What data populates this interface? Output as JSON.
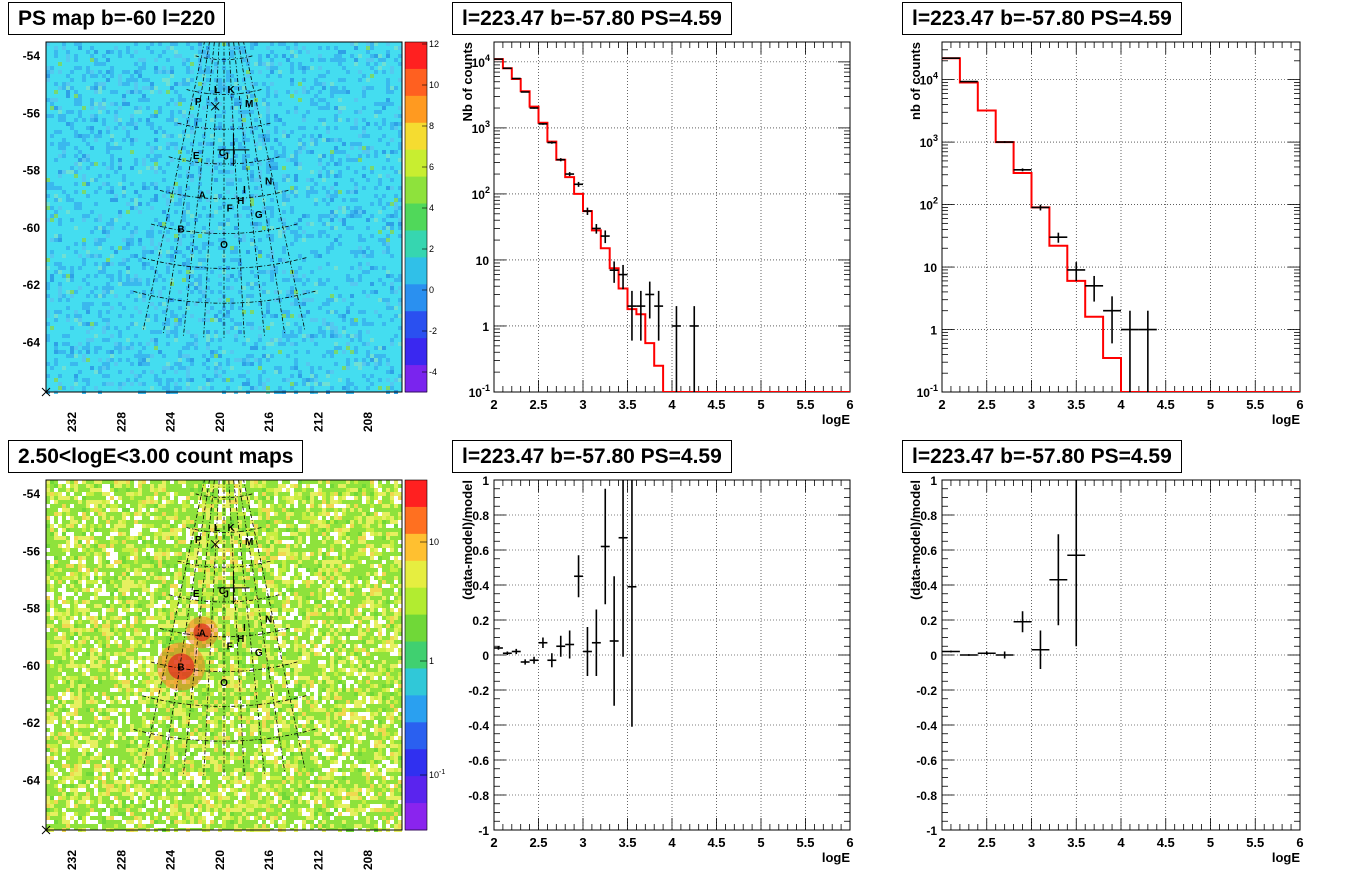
{
  "panels": {
    "psmap_title": "PS map b=-60 l=220",
    "countmap_title": "2.50<logE<3.00 count maps",
    "spec1_title": "l=223.47 b=-57.80 PS=4.59",
    "spec2_title": "l=223.47 b=-57.80 PS=4.59",
    "res1_title": "l=223.47 b=-57.80 PS=4.59",
    "res2_title": "l=223.47 b=-57.80 PS=4.59"
  },
  "colors": {
    "model_line": "#ff0000",
    "data_points": "#000000",
    "psmap_background": "#44ddf0",
    "countmap_background": "#8ee23c"
  },
  "maps": {
    "lat_ticks": [
      "-54",
      "-56",
      "-58",
      "-60",
      "-62",
      "-64"
    ],
    "lon_ticks": [
      "232",
      "228",
      "224",
      "220",
      "216",
      "212",
      "208"
    ],
    "source_labels": [
      {
        "name": "K",
        "l": 223.9,
        "b": -53.7
      },
      {
        "name": "L",
        "l": 216.1,
        "b": -53.7
      },
      {
        "name": "M",
        "l": 232.5,
        "b": -54.6
      },
      {
        "name": "P",
        "l": 207.1,
        "b": -54.5
      },
      {
        "name": "C",
        "l": 219.4,
        "b": -57.3
      },
      {
        "name": "J",
        "l": 220.8,
        "b": -57.5
      },
      {
        "name": "E",
        "l": 209.7,
        "b": -57.6
      },
      {
        "name": "N",
        "l": 234.6,
        "b": -59.2
      },
      {
        "name": "I",
        "l": 226.5,
        "b": -59.5
      },
      {
        "name": "A",
        "l": 213.2,
        "b": -59.8
      },
      {
        "name": "H",
        "l": 225.1,
        "b": -60.1
      },
      {
        "name": "F",
        "l": 221.7,
        "b": -60.5
      },
      {
        "name": "G",
        "l": 230.0,
        "b": -61.0
      },
      {
        "name": "B",
        "l": 208.3,
        "b": -61.9
      },
      {
        "name": "O",
        "l": 220.0,
        "b": -62.6
      }
    ],
    "psmap_colorbar_ticks": [
      "12",
      "10",
      "8",
      "6",
      "4",
      "2",
      "0",
      "-2",
      "-4"
    ],
    "countmap_colorbar_ticks": [
      "10",
      "1",
      "10-1"
    ]
  },
  "chart_data": [
    {
      "type": "line",
      "title": "l=223.47 b=-57.80 PS=4.59",
      "xlabel": "logE",
      "ylabel": "Nb of counts",
      "xlim": [
        2,
        6
      ],
      "ylim": [
        0.1,
        20000
      ],
      "log_y": true,
      "grid": true,
      "x_ticks": [
        "2",
        "2.5",
        "3",
        "3.5",
        "4",
        "4.5",
        "5",
        "5.5",
        "6"
      ],
      "y_ticks": [
        "10^-1",
        "1",
        "10",
        "10^2",
        "10^3",
        "10^4"
      ],
      "series": [
        {
          "style": "step",
          "bin_edges": [
            2.0,
            2.1,
            2.2,
            2.3,
            2.4,
            2.5,
            2.6,
            2.7,
            2.8,
            2.9,
            3.0,
            3.1,
            3.2,
            3.3,
            3.4,
            3.5,
            3.6,
            3.7,
            3.8,
            3.9,
            4.0,
            4.1,
            4.2,
            4.3,
            4.4,
            4.5,
            4.6,
            4.7,
            4.8,
            4.9,
            5.0,
            5.1,
            5.2,
            5.3,
            5.4,
            5.5,
            5.6,
            5.7,
            5.8,
            5.9,
            6.0
          ],
          "values": [
            11000,
            8000,
            5500,
            3600,
            2100,
            1200,
            620,
            330,
            180,
            100,
            55,
            28,
            15,
            7.5,
            3.7,
            1.8,
            1.5,
            0.55,
            0.25,
            0.1,
            0.1,
            0.1,
            0.1,
            0.1,
            0.1,
            0.1,
            0.1,
            0.1,
            0.1,
            0.1,
            0.1,
            0.1,
            0.1,
            0.1,
            0.1,
            0.1,
            0.1,
            0.1,
            0.1,
            0.1
          ]
        },
        {
          "style": "points",
          "x": [
            2.05,
            2.15,
            2.25,
            2.35,
            2.45,
            2.55,
            2.65,
            2.75,
            2.85,
            2.95,
            3.05,
            3.15,
            3.25,
            3.35,
            3.45,
            3.55,
            3.65,
            3.75,
            3.85,
            4.05,
            4.25
          ],
          "y": [
            11000,
            8000,
            5600,
            3500,
            2000,
            1150,
            600,
            330,
            200,
            140,
            55,
            30,
            23,
            7,
            6,
            2,
            2,
            3,
            2,
            1,
            1
          ],
          "err_low": [
            105,
            90,
            75,
            59,
            45,
            34,
            24,
            18,
            14,
            12,
            7,
            5,
            5,
            2.5,
            2.4,
            1.4,
            1.4,
            1.7,
            1.4,
            1,
            1
          ],
          "err_high": [
            105,
            90,
            75,
            59,
            45,
            34,
            24,
            18,
            14,
            12,
            7,
            5,
            5,
            2.5,
            2.4,
            1.4,
            1.4,
            1.7,
            1.4,
            1,
            1
          ]
        }
      ]
    },
    {
      "type": "line",
      "title": "l=223.47 b=-57.80 PS=4.59",
      "xlabel": "logE",
      "ylabel": "nb of counts",
      "xlim": [
        2,
        6
      ],
      "ylim": [
        0.1,
        40000
      ],
      "log_y": true,
      "grid": true,
      "x_ticks": [
        "2",
        "2.5",
        "3",
        "3.5",
        "4",
        "4.5",
        "5",
        "5.5",
        "6"
      ],
      "y_ticks": [
        "10^-1",
        "1",
        "10",
        "10^2",
        "10^3",
        "10^4"
      ],
      "series": [
        {
          "style": "step",
          "bin_edges": [
            2.0,
            2.2,
            2.4,
            2.6,
            2.8,
            3.0,
            3.2,
            3.4,
            3.6,
            3.8,
            4.0,
            4.2,
            4.4,
            4.6,
            4.8,
            5.0,
            5.2,
            5.4,
            5.6,
            5.8,
            6.0
          ],
          "values": [
            22000,
            9000,
            3200,
            1000,
            320,
            90,
            22,
            6,
            1.6,
            0.35,
            0.1,
            0.1,
            0.1,
            0.1,
            0.1,
            0.1,
            0.1,
            0.1,
            0.1,
            0.1
          ],
          "cap": 40000
        },
        {
          "style": "points",
          "x": [
            2.1,
            2.3,
            2.7,
            2.9,
            3.1,
            3.3,
            3.5,
            3.7,
            3.9,
            4.1,
            4.3
          ],
          "y": [
            22000,
            9300,
            1000,
            360,
            90,
            30,
            9,
            5,
            2,
            1,
            1
          ],
          "err_low": [
            148,
            96,
            32,
            19,
            9.5,
            5.5,
            3,
            2.2,
            1.4,
            1,
            1
          ],
          "err_high": [
            148,
            96,
            32,
            19,
            9.5,
            5.5,
            3,
            2.2,
            1.4,
            1,
            1
          ]
        }
      ]
    },
    {
      "type": "scatter",
      "title": "l=223.47 b=-57.80 PS=4.59",
      "xlabel": "logE",
      "ylabel": "(data-model)/model",
      "xlim": [
        2,
        6
      ],
      "ylim": [
        -1,
        1
      ],
      "grid": true,
      "x_ticks": [
        "2",
        "2.5",
        "3",
        "3.5",
        "4",
        "4.5",
        "5",
        "5.5",
        "6"
      ],
      "y_ticks": [
        "-1",
        "-0.8",
        "-0.6",
        "-0.4",
        "-0.2",
        "0",
        "0.2",
        "0.4",
        "0.6",
        "0.8",
        "1"
      ],
      "series": [
        {
          "x": [
            2.05,
            2.15,
            2.25,
            2.35,
            2.45,
            2.55,
            2.65,
            2.75,
            2.85,
            2.95,
            3.05,
            3.15,
            3.25,
            3.35,
            3.45,
            3.55
          ],
          "y": [
            0.04,
            0.01,
            0.02,
            -0.04,
            -0.03,
            0.07,
            -0.03,
            0.05,
            0.06,
            0.45,
            0.02,
            0.07,
            0.62,
            0.08,
            0.67,
            0.39
          ],
          "err": [
            0.01,
            0.01,
            0.015,
            0.015,
            0.02,
            0.03,
            0.04,
            0.06,
            0.08,
            0.12,
            0.14,
            0.19,
            0.33,
            0.37,
            0.68,
            0.8
          ]
        }
      ]
    },
    {
      "type": "scatter",
      "title": "l=223.47 b=-57.80 PS=4.59",
      "xlabel": "logE",
      "ylabel": "(data-model)/model",
      "xlim": [
        2,
        6
      ],
      "ylim": [
        -1,
        1
      ],
      "grid": true,
      "x_ticks": [
        "2",
        "2.5",
        "3",
        "3.5",
        "4",
        "4.5",
        "5",
        "5.5",
        "6"
      ],
      "y_ticks": [
        "-1",
        "-0.8",
        "-0.6",
        "-0.4",
        "-0.2",
        "0",
        "0.2",
        "0.4",
        "0.6",
        "0.8",
        "1"
      ],
      "series": [
        {
          "x": [
            2.1,
            2.3,
            2.5,
            2.7,
            2.9,
            3.1,
            3.3,
            3.5
          ],
          "y": [
            0.02,
            0.0,
            0.01,
            0.0,
            0.19,
            0.03,
            0.43,
            0.57
          ],
          "err": [
            0.005,
            0.005,
            0.01,
            0.02,
            0.06,
            0.11,
            0.26,
            0.52
          ]
        }
      ]
    }
  ]
}
